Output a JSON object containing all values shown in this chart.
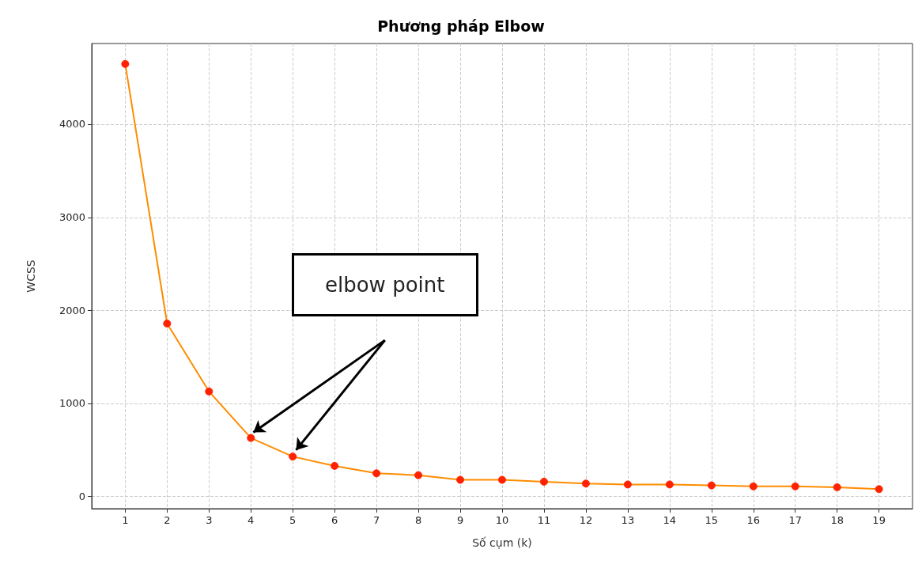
{
  "chart_data": {
    "type": "line",
    "title": "Phương pháp Elbow",
    "xlabel": "Số cụm (k)",
    "ylabel": "WCSS",
    "x": [
      1,
      2,
      3,
      4,
      5,
      6,
      7,
      8,
      9,
      10,
      11,
      12,
      13,
      14,
      15,
      16,
      17,
      18,
      19
    ],
    "series": [
      {
        "color": "#ff8c00",
        "values": [
          4650,
          1860,
          1130,
          630,
          430,
          330,
          250,
          230,
          180,
          180,
          160,
          140,
          130,
          130,
          120,
          110,
          110,
          100,
          80
        ]
      }
    ],
    "xlim": [
      0.2,
      19.8
    ],
    "xticks": [
      1,
      2,
      3,
      4,
      5,
      6,
      7,
      8,
      9,
      10,
      11,
      12,
      13,
      14,
      15,
      16,
      17,
      18,
      19
    ],
    "ylim": [
      -130,
      4870
    ],
    "yticks": [
      0,
      1000,
      2000,
      3000,
      4000
    ],
    "grid": true,
    "marker": "circle",
    "line_style": "solid",
    "annotations": [
      "elbow point"
    ]
  }
}
